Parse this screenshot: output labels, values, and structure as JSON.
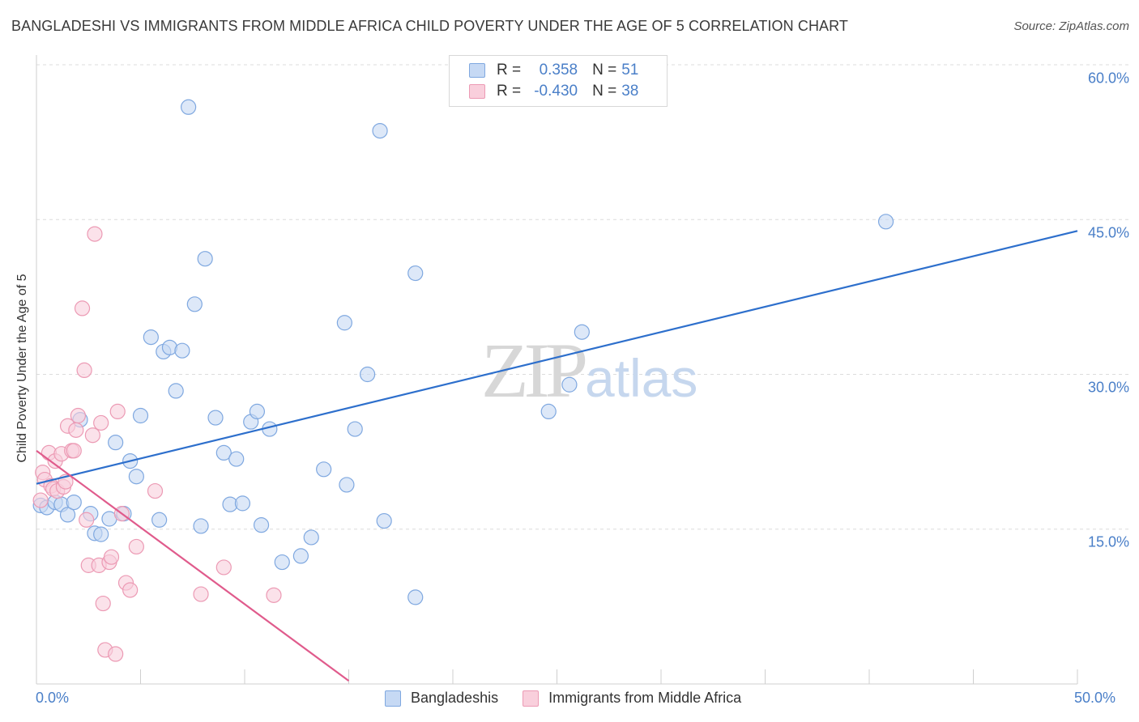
{
  "title": "BANGLADESHI VS IMMIGRANTS FROM MIDDLE AFRICA CHILD POVERTY UNDER THE AGE OF 5 CORRELATION CHART",
  "source": "Source: ZipAtlas.com",
  "legend": {
    "row1": {
      "r_label": "R =",
      "r_value": "0.358",
      "n_label": "N =",
      "n_value": "51"
    },
    "row2": {
      "r_label": "R =",
      "r_value": "-0.430",
      "n_label": "N =",
      "n_value": "38"
    }
  },
  "watermark": {
    "zip": "ZIP",
    "atlas": "atlas"
  },
  "colors": {
    "blue_fill": "#c6d9f4",
    "blue_stroke": "#7fa8e0",
    "blue_line": "#2d6fcc",
    "pink_fill": "#f9cfdc",
    "pink_stroke": "#ec9ab4",
    "pink_line": "#e05b8c",
    "tick_text": "#4a7fc8",
    "grid": "#dcdcdc"
  },
  "chart_data": {
    "type": "scatter",
    "title": "BANGLADESHI VS IMMIGRANTS FROM MIDDLE AFRICA CHILD POVERTY UNDER THE AGE OF 5 CORRELATION CHART",
    "xlabel": "",
    "ylabel": "Child Poverty Under the Age of 5",
    "xlim": [
      0,
      50
    ],
    "ylim": [
      0,
      60
    ],
    "x_tick_labels": [
      "0.0%",
      "50.0%"
    ],
    "y_ticks": [
      15,
      30,
      45,
      60
    ],
    "y_tick_labels": [
      "15.0%",
      "30.0%",
      "45.0%",
      "60.0%"
    ],
    "grid": true,
    "legend_position": "top-center",
    "series": [
      {
        "name": "Bangladeshis",
        "r": 0.358,
        "n": 51,
        "trend": {
          "x": [
            0,
            50
          ],
          "y": [
            19.4,
            43.9
          ]
        },
        "points": [
          [
            0.2,
            17.3
          ],
          [
            0.5,
            17.1
          ],
          [
            0.9,
            17.6
          ],
          [
            1.2,
            17.4
          ],
          [
            1.5,
            16.4
          ],
          [
            1.8,
            17.6
          ],
          [
            2.1,
            25.6
          ],
          [
            2.6,
            16.5
          ],
          [
            2.8,
            14.6
          ],
          [
            3.1,
            14.5
          ],
          [
            3.5,
            16.0
          ],
          [
            3.8,
            23.4
          ],
          [
            4.2,
            16.5
          ],
          [
            4.5,
            21.6
          ],
          [
            4.8,
            20.1
          ],
          [
            5.0,
            26.0
          ],
          [
            5.5,
            33.6
          ],
          [
            5.9,
            15.9
          ],
          [
            6.1,
            32.2
          ],
          [
            6.4,
            32.6
          ],
          [
            6.7,
            28.4
          ],
          [
            7.0,
            32.3
          ],
          [
            7.3,
            55.9
          ],
          [
            7.6,
            36.8
          ],
          [
            7.9,
            15.3
          ],
          [
            8.1,
            41.2
          ],
          [
            8.6,
            25.8
          ],
          [
            9.0,
            22.4
          ],
          [
            9.3,
            17.4
          ],
          [
            9.6,
            21.8
          ],
          [
            9.9,
            17.5
          ],
          [
            10.3,
            25.4
          ],
          [
            10.6,
            26.4
          ],
          [
            10.8,
            15.4
          ],
          [
            11.2,
            24.7
          ],
          [
            11.8,
            11.8
          ],
          [
            12.7,
            12.4
          ],
          [
            13.2,
            14.2
          ],
          [
            13.8,
            20.8
          ],
          [
            14.8,
            35.0
          ],
          [
            14.9,
            19.3
          ],
          [
            15.3,
            24.7
          ],
          [
            15.9,
            30.0
          ],
          [
            16.5,
            53.6
          ],
          [
            16.7,
            15.8
          ],
          [
            18.2,
            39.8
          ],
          [
            18.2,
            8.4
          ],
          [
            24.6,
            26.4
          ],
          [
            25.6,
            29.0
          ],
          [
            26.2,
            34.1
          ],
          [
            40.8,
            44.8
          ]
        ]
      },
      {
        "name": "Immigrants from Middle Africa",
        "r": -0.43,
        "n": 38,
        "trend": {
          "x": [
            0,
            15
          ],
          "y": [
            22.6,
            0.3
          ]
        },
        "points": [
          [
            0.2,
            17.8
          ],
          [
            0.3,
            20.5
          ],
          [
            0.4,
            19.8
          ],
          [
            0.6,
            22.4
          ],
          [
            0.7,
            19.2
          ],
          [
            0.8,
            18.9
          ],
          [
            0.9,
            21.6
          ],
          [
            1.0,
            18.7
          ],
          [
            1.2,
            22.3
          ],
          [
            1.3,
            19.1
          ],
          [
            1.4,
            19.6
          ],
          [
            1.5,
            25.0
          ],
          [
            1.7,
            22.6
          ],
          [
            1.8,
            22.6
          ],
          [
            1.9,
            24.6
          ],
          [
            2.0,
            26.0
          ],
          [
            2.2,
            36.4
          ],
          [
            2.3,
            30.4
          ],
          [
            2.4,
            15.9
          ],
          [
            2.5,
            11.5
          ],
          [
            2.7,
            24.1
          ],
          [
            2.8,
            43.6
          ],
          [
            3.0,
            11.5
          ],
          [
            3.1,
            25.3
          ],
          [
            3.2,
            7.8
          ],
          [
            3.3,
            3.3
          ],
          [
            3.5,
            11.8
          ],
          [
            3.6,
            12.3
          ],
          [
            3.8,
            2.9
          ],
          [
            3.9,
            26.4
          ],
          [
            4.1,
            16.5
          ],
          [
            4.3,
            9.8
          ],
          [
            4.5,
            9.1
          ],
          [
            4.8,
            13.3
          ],
          [
            5.7,
            18.7
          ],
          [
            7.9,
            8.7
          ],
          [
            9.0,
            11.3
          ],
          [
            11.4,
            8.6
          ]
        ]
      }
    ]
  },
  "bottom_legend": {
    "item1": "Bangladeshis",
    "item2": "Immigrants from Middle Africa"
  }
}
